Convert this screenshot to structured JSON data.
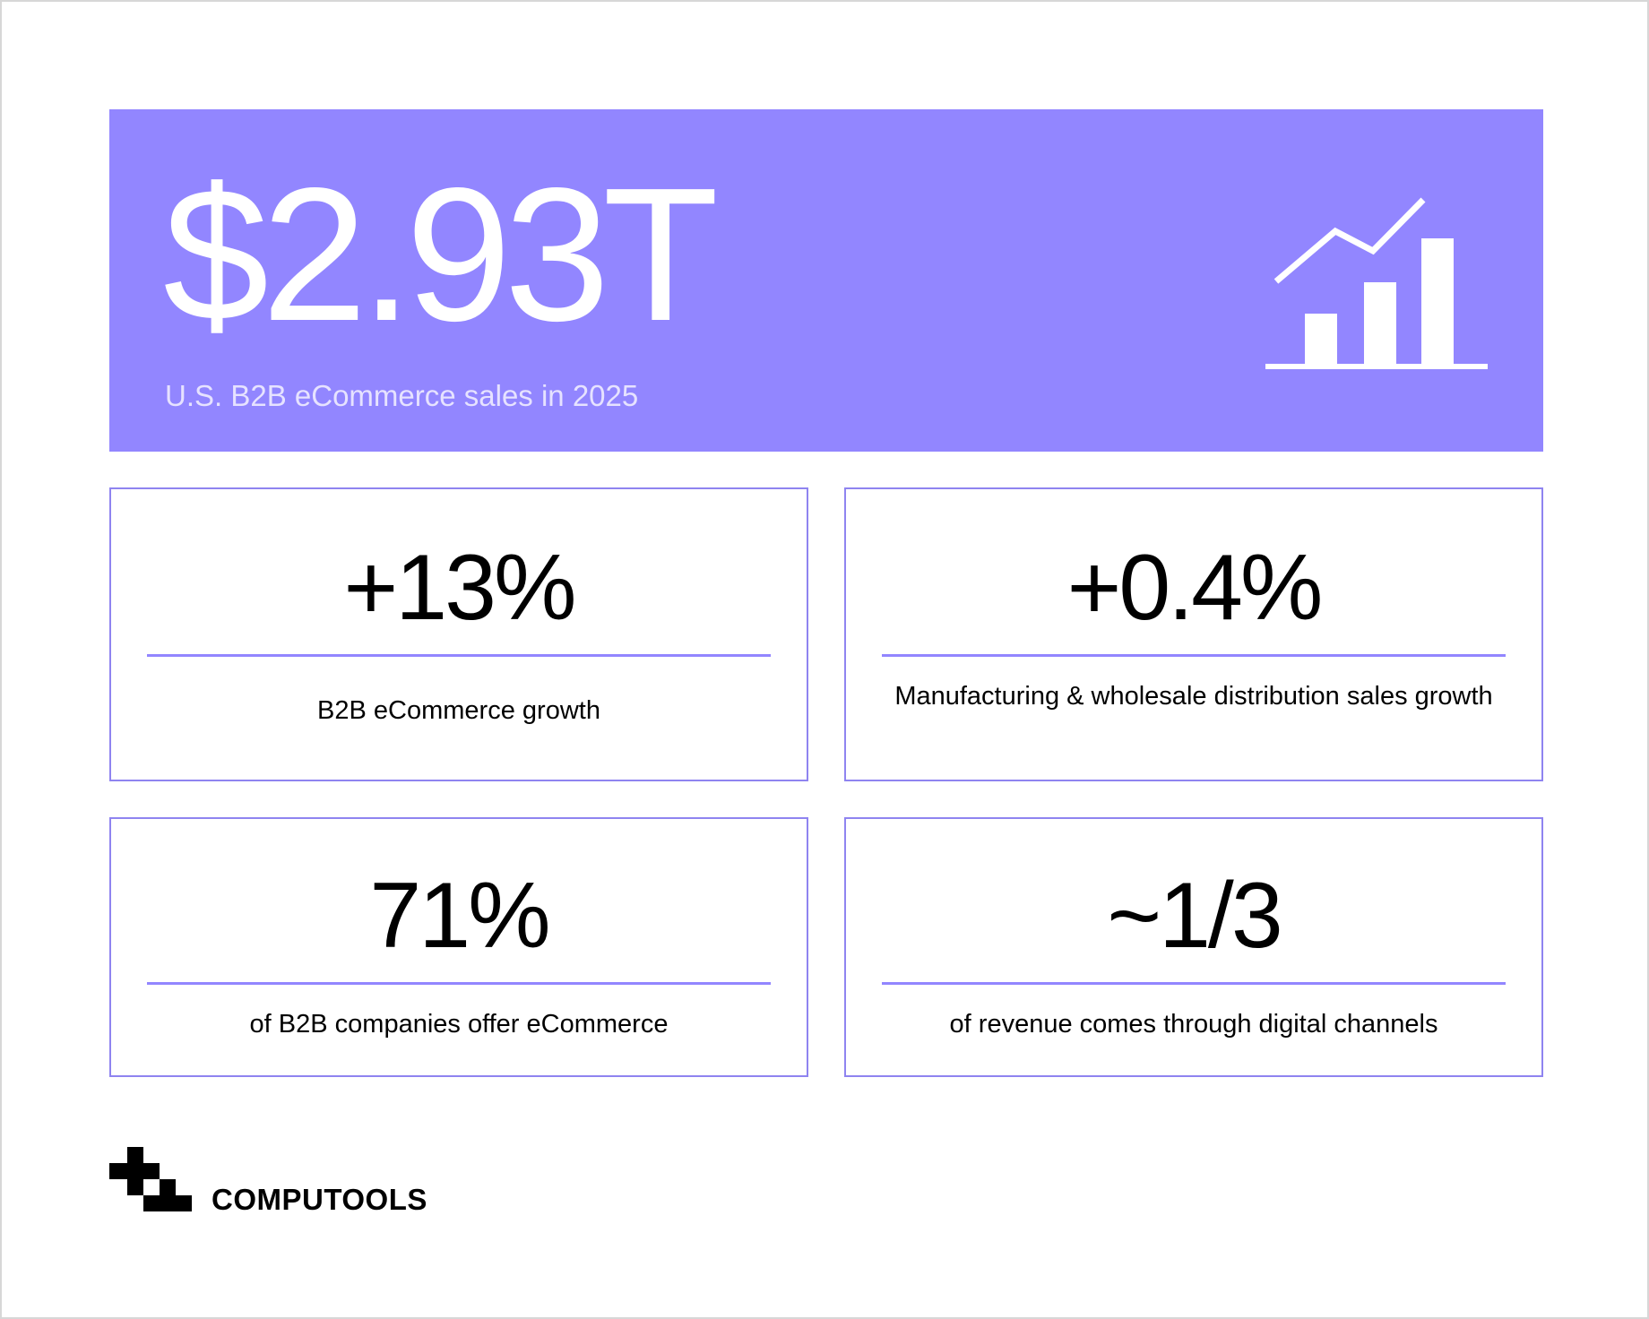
{
  "hero": {
    "value": "$2.93T",
    "caption": "U.S. B2B eCommerce sales in 2025",
    "icon": "growth-chart-icon",
    "background_color": "#9286ff"
  },
  "stats": [
    {
      "value": "+13%",
      "label": "B2B eCommerce growth"
    },
    {
      "value": "+0.4%",
      "label": "Manufacturing & wholesale distribution sales growth"
    },
    {
      "value": "71%",
      "label": "of B2B companies offer eCommerce"
    },
    {
      "value": "~1/3",
      "label": "of revenue comes through digital channels"
    }
  ],
  "brand": {
    "name": "COMPUTOOLS",
    "logo_icon": "computools-logo-icon"
  },
  "colors": {
    "accent": "#9286ff",
    "card_border": "#8f84f0",
    "text": "#000000"
  }
}
